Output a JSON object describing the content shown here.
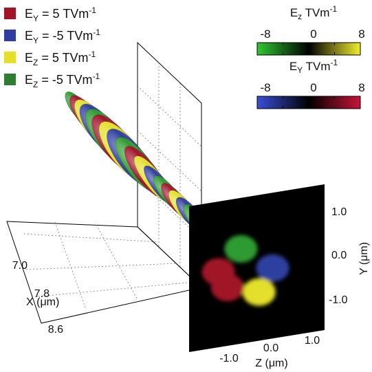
{
  "chart_data": {
    "type": "3d-isosurface",
    "legend": {
      "placement": "top-left",
      "entries": [
        {
          "field": "E",
          "sub": "Y",
          "rest": " = 5 TVm",
          "sup": "-1",
          "color": "#a01428"
        },
        {
          "field": "E",
          "sub": "Y",
          "rest": " = -5 TVm",
          "sup": "-1",
          "color": "#2f3f9f"
        },
        {
          "field": "E",
          "sub": "Z",
          "rest": " = 5 TVm",
          "sup": "-1",
          "color": "#e3df2a"
        },
        {
          "field": "E",
          "sub": "Z",
          "rest": " = -5 TVm",
          "sup": "-1",
          "color": "#2e7d32"
        }
      ]
    },
    "colorbars": [
      {
        "field": "E",
        "sub": "z",
        "unit": " TVm",
        "sup": "-1",
        "min": -8,
        "max": 8,
        "ticks": [
          "-8",
          "0",
          "8"
        ],
        "colors": [
          "#2ec830",
          "#000000",
          "#f2ee2e"
        ]
      },
      {
        "field": "E",
        "sub": "Y",
        "unit": " TVm",
        "sup": "-1",
        "min": -8,
        "max": 8,
        "ticks": [
          "-8",
          "0",
          "8"
        ],
        "colors": [
          "#3a4ed8",
          "#000000",
          "#c81438"
        ]
      }
    ],
    "x_axis": {
      "label": "X (μm)",
      "ticks": [
        "7.0",
        "7.8",
        "8.6"
      ]
    },
    "y_axis": {
      "label": "Y (μm)",
      "ticks": [
        "1.0",
        "0.0",
        "-1.0"
      ]
    },
    "z_axis": {
      "label": "Z (μm)",
      "ticks": [
        "-1.0",
        "0.0",
        "1.0"
      ]
    },
    "helix_sequence": [
      "green",
      "red",
      "yellow",
      "blue",
      "green",
      "red",
      "yellow",
      "blue",
      "green",
      "red",
      "yellow",
      "blue",
      "green",
      "red",
      "yellow",
      "blue",
      "green",
      "red"
    ],
    "colors": {
      "red": "#a01428",
      "blue": "#2f3f9f",
      "yellow": "#e3df2a",
      "green": "#2e9a30"
    },
    "slice_blobs": [
      {
        "color": "green",
        "y": 0.45,
        "z": -0.35
      },
      {
        "color": "blue",
        "y": -0.05,
        "z": 0.35
      },
      {
        "color": "yellow",
        "y": -0.5,
        "z": 0.05
      },
      {
        "color": "red",
        "y": -0.3,
        "z": -0.65
      },
      {
        "color": "red",
        "y": 0.05,
        "z": -0.85
      }
    ]
  }
}
